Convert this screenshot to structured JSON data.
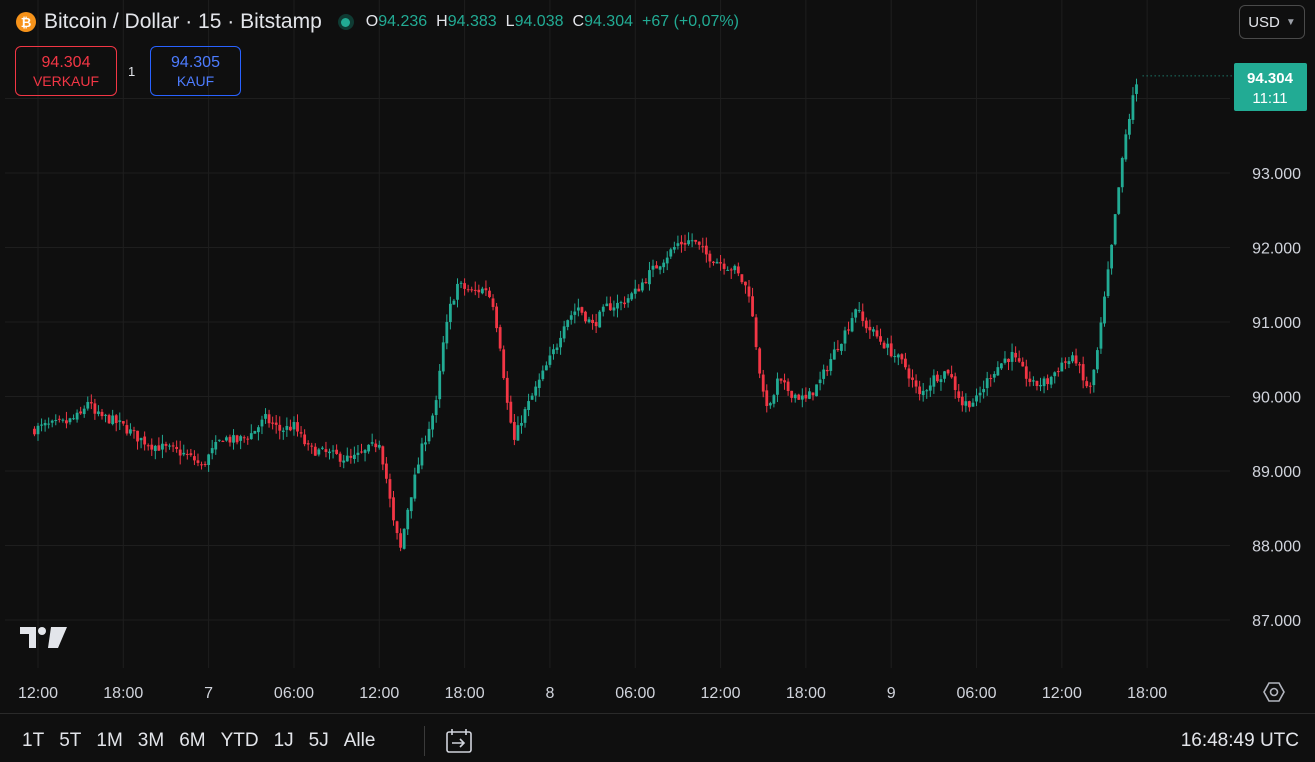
{
  "header": {
    "symbol_title": "Bitcoin / Dollar · 15 · Bitstamp",
    "ohlc": [
      {
        "key": "O",
        "value": "94.236"
      },
      {
        "key": "H",
        "value": "94.383"
      },
      {
        "key": "L",
        "value": "94.038"
      },
      {
        "key": "C",
        "value": "94.304"
      }
    ],
    "change": "+67 (+0,07%)",
    "currency": "USD"
  },
  "trade": {
    "sell_price": "94.304",
    "sell_label": "VERKAUF",
    "spread": "1",
    "buy_price": "94.305",
    "buy_label": "KAUF"
  },
  "price_tag": {
    "price": "94.304",
    "countdown": "11:11"
  },
  "bottombar": {
    "ranges": [
      "1T",
      "5T",
      "1M",
      "3M",
      "6M",
      "YTD",
      "1J",
      "5J",
      "Alle"
    ],
    "clock": "16:48:49 UTC"
  },
  "colors": {
    "up": "#22ab94",
    "down": "#f23645",
    "background": "#0f0f0f",
    "grid": "#1e1e1e"
  },
  "chart_data": {
    "type": "candlestick",
    "interval_minutes": 15,
    "y_axis": {
      "ticks": [
        87000,
        88000,
        89000,
        90000,
        91000,
        92000,
        93000,
        94000
      ],
      "tick_labels": [
        "87.000",
        "88.000",
        "89.000",
        "90.000",
        "91.000",
        "92.000",
        "93.000",
        ""
      ],
      "range": [
        86500,
        95300
      ]
    },
    "x_axis": {
      "tick_labels": [
        "12:00",
        "18:00",
        "7",
        "06:00",
        "12:00",
        "18:00",
        "8",
        "06:00",
        "12:00",
        "18:00",
        "9",
        "06:00",
        "12:00",
        "18:00"
      ],
      "tick_hours": [
        12,
        18,
        24,
        30,
        36,
        42,
        48,
        54,
        60,
        66,
        72,
        78,
        84,
        90
      ]
    },
    "last_price": 94304,
    "close_path": [
      [
        11.5,
        89550
      ],
      [
        12.5,
        89600
      ],
      [
        14,
        89650
      ],
      [
        15,
        89750
      ],
      [
        15.5,
        89950
      ],
      [
        16,
        89750
      ],
      [
        17,
        89700
      ],
      [
        18,
        89600
      ],
      [
        19,
        89450
      ],
      [
        20,
        89350
      ],
      [
        21,
        89300
      ],
      [
        22,
        89250
      ],
      [
        23,
        89150
      ],
      [
        23.5,
        89050
      ],
      [
        24,
        89200
      ],
      [
        25,
        89450
      ],
      [
        26,
        89400
      ],
      [
        27,
        89500
      ],
      [
        28,
        89700
      ],
      [
        29,
        89550
      ],
      [
        30,
        89600
      ],
      [
        31,
        89300
      ],
      [
        32,
        89250
      ],
      [
        33,
        89200
      ],
      [
        34,
        89150
      ],
      [
        35,
        89250
      ],
      [
        36,
        89400
      ],
      [
        36.5,
        88900
      ],
      [
        37,
        88300
      ],
      [
        37.5,
        87950
      ],
      [
        38,
        88500
      ],
      [
        39,
        89300
      ],
      [
        40,
        89900
      ],
      [
        40.5,
        90700
      ],
      [
        41,
        91200
      ],
      [
        41.5,
        91500
      ],
      [
        42.5,
        91400
      ],
      [
        43.5,
        91450
      ],
      [
        44,
        91250
      ],
      [
        44.5,
        90700
      ],
      [
        45,
        89900
      ],
      [
        45.5,
        89400
      ],
      [
        46,
        89700
      ],
      [
        47,
        90100
      ],
      [
        48,
        90500
      ],
      [
        48.5,
        90700
      ],
      [
        49,
        91000
      ],
      [
        50,
        91200
      ],
      [
        51,
        90950
      ],
      [
        52,
        91200
      ],
      [
        53,
        91250
      ],
      [
        54,
        91400
      ],
      [
        55,
        91650
      ],
      [
        56,
        91850
      ],
      [
        57,
        92050
      ],
      [
        58,
        92100
      ],
      [
        59,
        91900
      ],
      [
        60,
        91800
      ],
      [
        61,
        91700
      ],
      [
        62,
        91400
      ],
      [
        62.5,
        90700
      ],
      [
        63,
        90000
      ],
      [
        63.5,
        89850
      ],
      [
        64,
        90200
      ],
      [
        65,
        90050
      ],
      [
        66,
        89950
      ],
      [
        67,
        90200
      ],
      [
        68,
        90600
      ],
      [
        69,
        90950
      ],
      [
        69.5,
        91200
      ],
      [
        70,
        91000
      ],
      [
        71,
        90800
      ],
      [
        72,
        90600
      ],
      [
        73,
        90400
      ],
      [
        74,
        90000
      ],
      [
        75,
        90250
      ],
      [
        76,
        90350
      ],
      [
        77,
        89900
      ],
      [
        78,
        89950
      ],
      [
        79,
        90300
      ],
      [
        80,
        90500
      ],
      [
        80.5,
        90550
      ],
      [
        81,
        90400
      ],
      [
        82,
        90150
      ],
      [
        83,
        90200
      ],
      [
        84,
        90450
      ],
      [
        85,
        90500
      ],
      [
        85.5,
        90200
      ],
      [
        86,
        90100
      ],
      [
        86.5,
        90600
      ],
      [
        87,
        91300
      ],
      [
        87.5,
        92000
      ],
      [
        88,
        92800
      ],
      [
        88.5,
        93500
      ],
      [
        89,
        94000
      ],
      [
        89.4,
        94304
      ]
    ]
  }
}
